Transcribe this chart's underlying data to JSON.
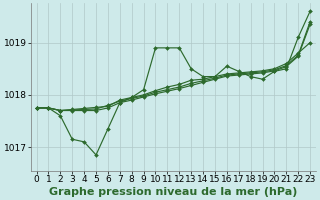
{
  "background_color": "#ceeaea",
  "plot_bg_color": "#ceeaea",
  "grid_color": "#b0c8c8",
  "line_color": "#2d6a2d",
  "ylim": [
    1016.55,
    1019.75
  ],
  "xlim": [
    -0.5,
    23.5
  ],
  "yticks": [
    1017,
    1018,
    1019
  ],
  "xticks": [
    0,
    1,
    2,
    3,
    4,
    5,
    6,
    7,
    8,
    9,
    10,
    11,
    12,
    13,
    14,
    15,
    16,
    17,
    18,
    19,
    20,
    21,
    22,
    23
  ],
  "xlabel": "Graphe pression niveau de la mer (hPa)",
  "series": [
    [
      1017.75,
      1017.75,
      1017.6,
      1017.15,
      1017.1,
      1016.85,
      1017.35,
      1017.85,
      1017.95,
      1018.1,
      1018.9,
      1018.9,
      1018.9,
      1018.5,
      1018.35,
      1018.35,
      1018.55,
      1018.45,
      1018.35,
      1018.3,
      1018.45,
      1018.5,
      1019.1,
      1019.6
    ],
    [
      1017.75,
      1017.75,
      1017.7,
      1017.72,
      1017.74,
      1017.76,
      1017.78,
      1017.9,
      1017.95,
      1018.0,
      1018.08,
      1018.15,
      1018.2,
      1018.28,
      1018.3,
      1018.35,
      1018.4,
      1018.42,
      1018.44,
      1018.46,
      1018.5,
      1018.6,
      1018.8,
      1019.0
    ],
    [
      1017.75,
      1017.75,
      1017.7,
      1017.71,
      1017.72,
      1017.73,
      1017.8,
      1017.88,
      1017.93,
      1017.98,
      1018.05,
      1018.1,
      1018.15,
      1018.22,
      1018.27,
      1018.32,
      1018.38,
      1018.4,
      1018.42,
      1018.44,
      1018.48,
      1018.56,
      1018.76,
      1019.4
    ],
    [
      1017.75,
      1017.75,
      1017.7,
      1017.7,
      1017.7,
      1017.7,
      1017.75,
      1017.85,
      1017.9,
      1017.96,
      1018.02,
      1018.07,
      1018.12,
      1018.18,
      1018.24,
      1018.3,
      1018.36,
      1018.38,
      1018.4,
      1018.42,
      1018.46,
      1018.54,
      1018.74,
      1019.35
    ]
  ],
  "title_fontsize": 8,
  "tick_fontsize": 6.5
}
